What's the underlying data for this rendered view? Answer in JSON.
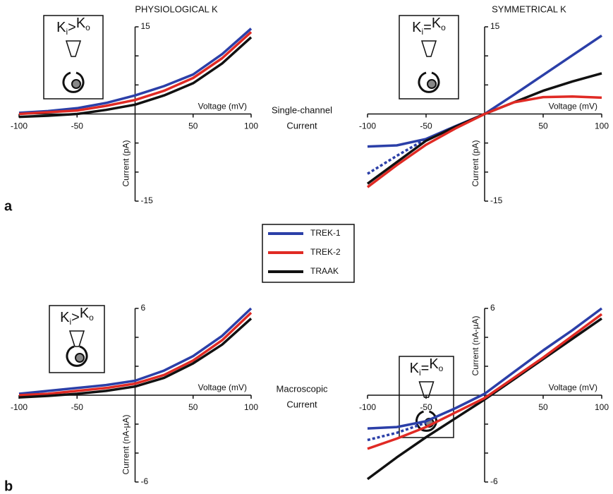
{
  "chart_data": [
    {
      "type": "line",
      "title": "PHYSIOLOGICAL K",
      "xlabel": "Voltage (mV)",
      "ylabel": "Current (pA)",
      "inset": [
        "K",
        "i",
        ">",
        "K",
        "o"
      ],
      "x": [
        -100,
        -75,
        -50,
        -25,
        0,
        25,
        50,
        75,
        100
      ],
      "xlim": [
        -100,
        100
      ],
      "xticks": [
        -100,
        -50,
        50,
        100
      ],
      "ylim": [
        -15,
        15
      ],
      "yticks": [
        -15,
        15
      ],
      "yminor": [
        -10,
        -5,
        5,
        10
      ],
      "series": [
        {
          "color": "#2b3fa8",
          "values": [
            0.2,
            0.5,
            1.0,
            1.9,
            3.2,
            4.8,
            6.8,
            10.3,
            14.7
          ]
        },
        {
          "color": "#e02a24",
          "values": [
            0,
            0.3,
            0.6,
            1.4,
            2.4,
            4.0,
            6.2,
            9.6,
            14.1
          ]
        },
        {
          "color": "#111111",
          "values": [
            -0.5,
            -0.3,
            0,
            0.7,
            1.6,
            3.2,
            5.3,
            8.7,
            13.2
          ]
        }
      ]
    },
    {
      "type": "line",
      "title": "SYMMETRICAL K",
      "xlabel": "Voltage (mV)",
      "ylabel": "Current (pA)",
      "inset": [
        "K",
        "i",
        "=",
        "K",
        "o"
      ],
      "x": [
        -100,
        -75,
        -50,
        -25,
        0,
        25,
        50,
        75,
        100
      ],
      "xlim": [
        -100,
        100
      ],
      "xticks": [
        -100,
        -50,
        50,
        100
      ],
      "ylim": [
        -15,
        15
      ],
      "yticks": [
        -15,
        15
      ],
      "yminor": [
        -10,
        -5,
        5,
        10
      ],
      "series": [
        {
          "color": "#2b3fa8",
          "values": [
            -10.3,
            -7.2,
            -4.3,
            null,
            null,
            null,
            null,
            null,
            null
          ],
          "style": "dashed"
        },
        {
          "color": "#2b3fa8",
          "values": [
            -5.6,
            -5.4,
            -4.3,
            -2.1,
            0,
            3.3,
            6.7,
            10.1,
            13.5
          ]
        },
        {
          "color": "#111111",
          "values": [
            -12.0,
            -8.3,
            -4.6,
            -2.2,
            0,
            2.0,
            4.0,
            5.6,
            7.0
          ]
        },
        {
          "color": "#e02a24",
          "values": [
            -12.6,
            -8.8,
            -5.3,
            -2.5,
            0,
            2.0,
            2.9,
            3.0,
            2.8
          ]
        }
      ]
    },
    {
      "type": "line",
      "xlabel": "Voltage (mV)",
      "ylabel": "Current (nA-µA)",
      "inset": [
        "K",
        "i",
        ">",
        "K",
        "o"
      ],
      "x": [
        -100,
        -75,
        -50,
        -25,
        0,
        25,
        50,
        75,
        100
      ],
      "xlim": [
        -100,
        100
      ],
      "xticks": [
        -100,
        -50,
        50,
        100
      ],
      "ylim": [
        -6,
        6
      ],
      "yticks": [
        -6,
        6
      ],
      "yminor": [
        -4,
        -2,
        2,
        4
      ],
      "series": [
        {
          "color": "#2b3fa8",
          "values": [
            0.1,
            0.3,
            0.5,
            0.7,
            1.0,
            1.7,
            2.7,
            4.1,
            6.0
          ]
        },
        {
          "color": "#e02a24",
          "values": [
            0,
            0.1,
            0.3,
            0.5,
            0.8,
            1.4,
            2.4,
            3.8,
            5.7
          ]
        },
        {
          "color": "#111111",
          "values": [
            -0.15,
            -0.05,
            0.1,
            0.3,
            0.6,
            1.2,
            2.2,
            3.5,
            5.3
          ]
        }
      ]
    },
    {
      "type": "line",
      "xlabel": "Voltage (mV)",
      "ylabel": "Current (nA-µA)",
      "inset": [
        "K",
        "i",
        "=",
        "K",
        "o"
      ],
      "x": [
        -100,
        -75,
        -50,
        -25,
        0,
        25,
        50,
        75,
        100
      ],
      "xlim": [
        -100,
        100
      ],
      "xticks": [
        -100,
        -50,
        50,
        100
      ],
      "ylim": [
        -6,
        6
      ],
      "yticks": [
        -6,
        6
      ],
      "yminor": [
        -4,
        -2,
        2,
        4
      ],
      "series": [
        {
          "color": "#2b3fa8",
          "values": [
            -3.1,
            -2.6,
            -1.9,
            null,
            null,
            null,
            null,
            null,
            null
          ],
          "style": "dashed"
        },
        {
          "color": "#111111",
          "values": [
            -5.8,
            -4.3,
            -2.9,
            -1.6,
            -0.3,
            1.1,
            2.5,
            3.9,
            5.3
          ]
        },
        {
          "color": "#e02a24",
          "values": [
            -3.7,
            -3.0,
            -2.2,
            -1.2,
            -0.2,
            1.2,
            2.6,
            4.1,
            5.6
          ]
        },
        {
          "color": "#2b3fa8",
          "values": [
            -2.3,
            -2.2,
            -1.8,
            -0.9,
            0.1,
            1.6,
            3.1,
            4.5,
            6.0
          ]
        }
      ]
    }
  ],
  "legend": [
    {
      "name": "TREK-1",
      "color": "#2b3fa8"
    },
    {
      "name": "TREK-2",
      "color": "#e02a24"
    },
    {
      "name": "TRAAK",
      "color": "#111111"
    }
  ],
  "panels": [
    {
      "label": "a",
      "caption": [
        "Single-channel",
        "Current"
      ]
    },
    {
      "label": "b",
      "caption": [
        "Macroscopic",
        "Current"
      ]
    }
  ]
}
